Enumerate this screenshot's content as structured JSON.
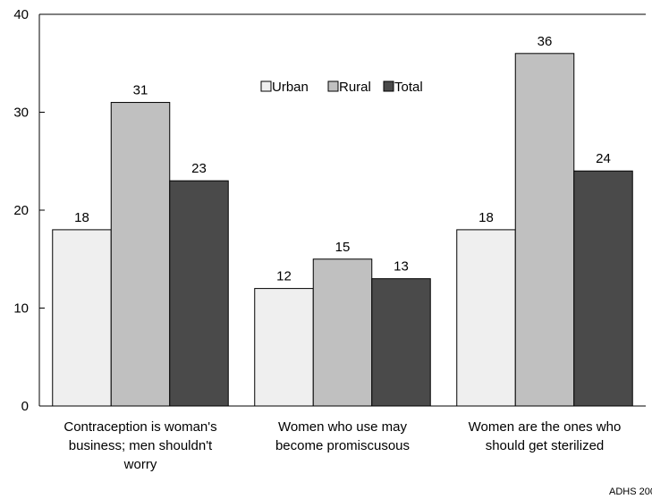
{
  "chart_data": {
    "type": "bar",
    "categories": [
      [
        "Contraception is woman's",
        "business; men shouldn't",
        "worry"
      ],
      [
        "Women who use may",
        "become promiscusous"
      ],
      [
        "Women are the ones who",
        "should get sterilized"
      ]
    ],
    "series": [
      {
        "name": "Urban",
        "values": [
          18,
          12,
          18
        ],
        "color": "#efefef"
      },
      {
        "name": "Rural",
        "values": [
          31,
          15,
          36
        ],
        "color": "#c0c0c0"
      },
      {
        "name": "Total",
        "values": [
          23,
          13,
          24
        ],
        "color": "#4a4a4a"
      }
    ],
    "ylim": [
      0,
      40
    ],
    "yticks": [
      0,
      10,
      20,
      30,
      40
    ],
    "legend_position": "top-center",
    "grid": false,
    "source_note": "ADHS 200"
  }
}
